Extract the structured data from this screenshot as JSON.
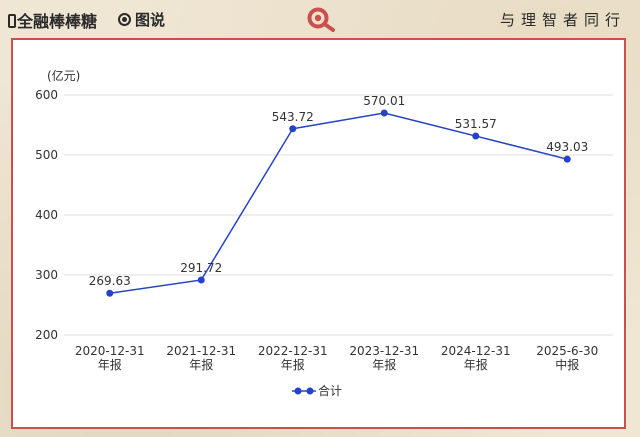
{
  "header": {
    "brand": "全融棒棒糖",
    "tag": "图说",
    "slogan": "与理智者同行"
  },
  "colors": {
    "accent": "#c9514d",
    "series": "#2542c9",
    "background": "#efe6d4"
  },
  "chart_data": {
    "type": "line",
    "unit_label": "(亿元)",
    "categories": [
      [
        "2020-12-31",
        "年报"
      ],
      [
        "2021-12-31",
        "年报"
      ],
      [
        "2022-12-31",
        "年报"
      ],
      [
        "2023-12-31",
        "年报"
      ],
      [
        "2024-12-31",
        "年报"
      ],
      [
        "2025-6-30",
        "中报"
      ]
    ],
    "series": [
      {
        "name": "合计",
        "values": [
          269.63,
          291.72,
          543.72,
          570.01,
          531.57,
          493.03
        ]
      }
    ],
    "ylim": [
      200,
      600
    ],
    "yticks": [
      200,
      300,
      400,
      500,
      600
    ],
    "grid": true,
    "legend": "bottom-center"
  }
}
